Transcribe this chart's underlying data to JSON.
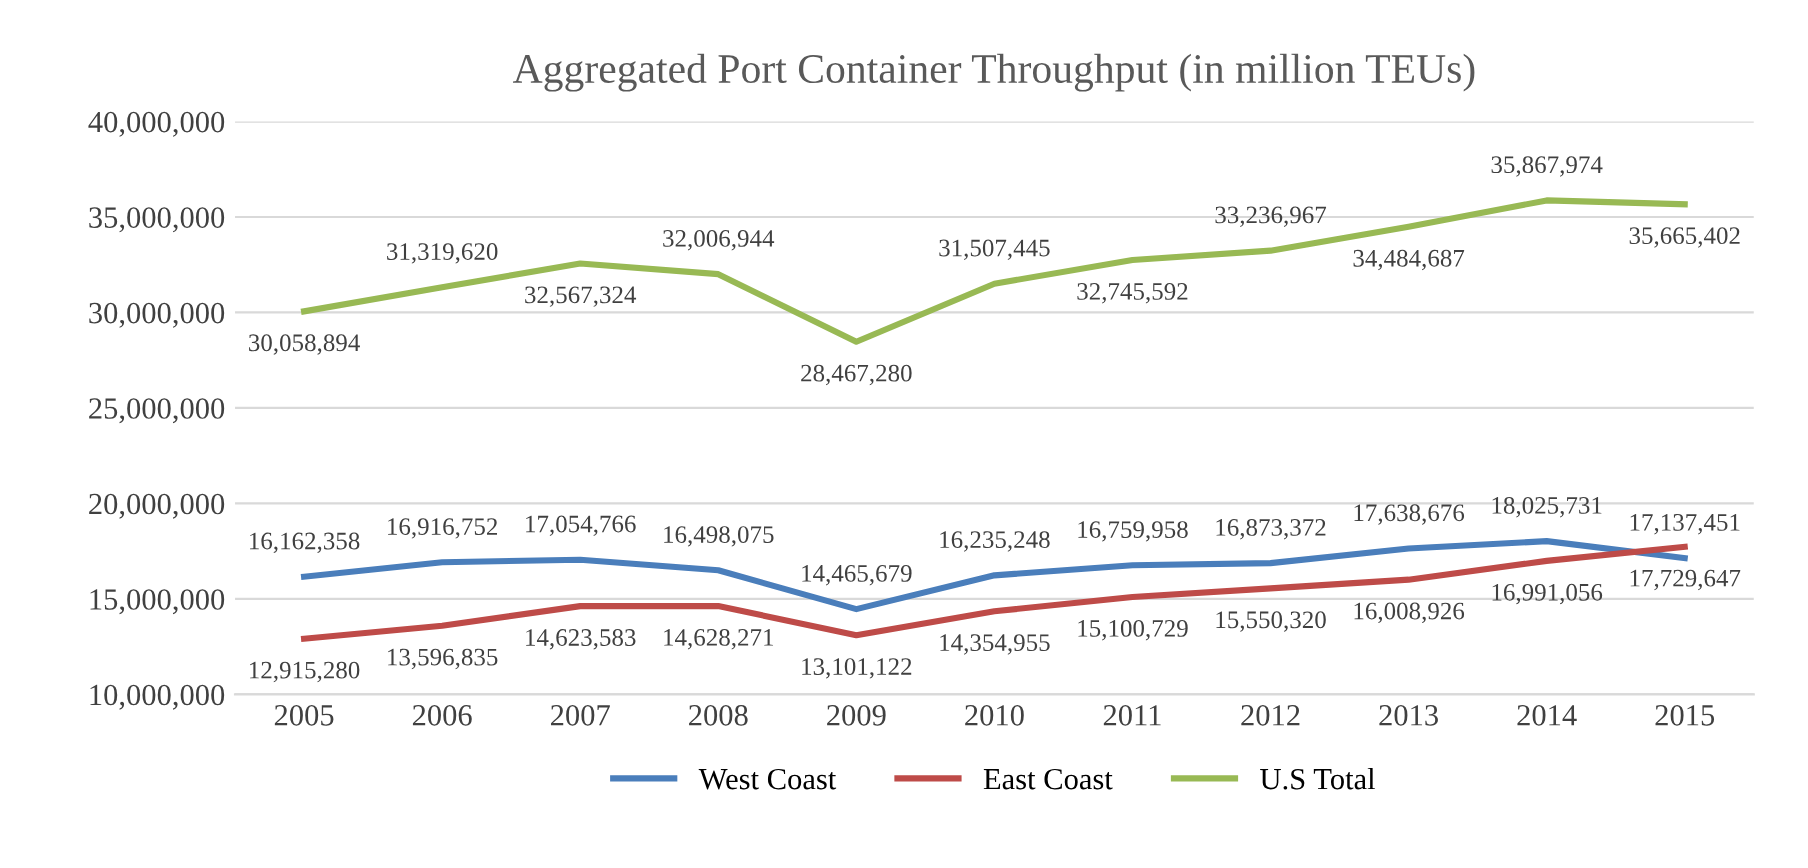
{
  "chart_data": {
    "type": "line",
    "title": "Aggregated Port Container Throughput (in million TEUs)",
    "categories": [
      "2005",
      "2006",
      "2007",
      "2008",
      "2009",
      "2010",
      "2011",
      "2012",
      "2013",
      "2014",
      "2015"
    ],
    "series": [
      {
        "name": "West Coast",
        "color": "#4a7ebb",
        "values": [
          16162358,
          16916752,
          17054766,
          16498075,
          14465679,
          16235248,
          16759958,
          16873372,
          17638676,
          18025731,
          17137451
        ],
        "value_labels": [
          "16,162,358",
          "16,916,752",
          "17,054,766",
          "16,498,075",
          "14,465,679",
          "16,235,248",
          "16,759,958",
          "16,873,372",
          "17,638,676",
          "18,025,731",
          "17,137,451"
        ]
      },
      {
        "name": "East Coast",
        "color": "#be4b48",
        "values": [
          12915280,
          13596835,
          14623583,
          14628271,
          13101122,
          14354955,
          15100729,
          15550320,
          16008926,
          16991056,
          17729647
        ],
        "value_labels": [
          "12,915,280",
          "13,596,835",
          "14,623,583",
          "14,628,271",
          "13,101,122",
          "14,354,955",
          "15,100,729",
          "15,550,320",
          "16,008,926",
          "16,991,056",
          "17,729,647"
        ]
      },
      {
        "name": "U.S Total",
        "color": "#98b954",
        "values": [
          30058894,
          31319620,
          32567324,
          32006944,
          28467280,
          31507445,
          32745592,
          33236967,
          34484687,
          35867974,
          35665402
        ],
        "value_labels": [
          "30,058,894",
          "31,319,620",
          "32,567,324",
          "32,006,944",
          "28,467,280",
          "31,507,445",
          "32,745,592",
          "33,236,967",
          "34,484,687",
          "35,867,974",
          "35,665,402"
        ]
      }
    ],
    "ylim": [
      10000000,
      40000000
    ],
    "yticks": [
      {
        "value": 10000000,
        "label": "10,000,000"
      },
      {
        "value": 15000000,
        "label": "15,000,000"
      },
      {
        "value": 20000000,
        "label": "20,000,000"
      },
      {
        "value": 25000000,
        "label": "25,000,000"
      },
      {
        "value": 30000000,
        "label": "30,000,000"
      },
      {
        "value": 35000000,
        "label": "35,000,000"
      },
      {
        "value": 40000000,
        "label": "40,000,000"
      }
    ],
    "grid": "y",
    "legend": "bottom",
    "marker": "none",
    "line_style": "solid"
  }
}
